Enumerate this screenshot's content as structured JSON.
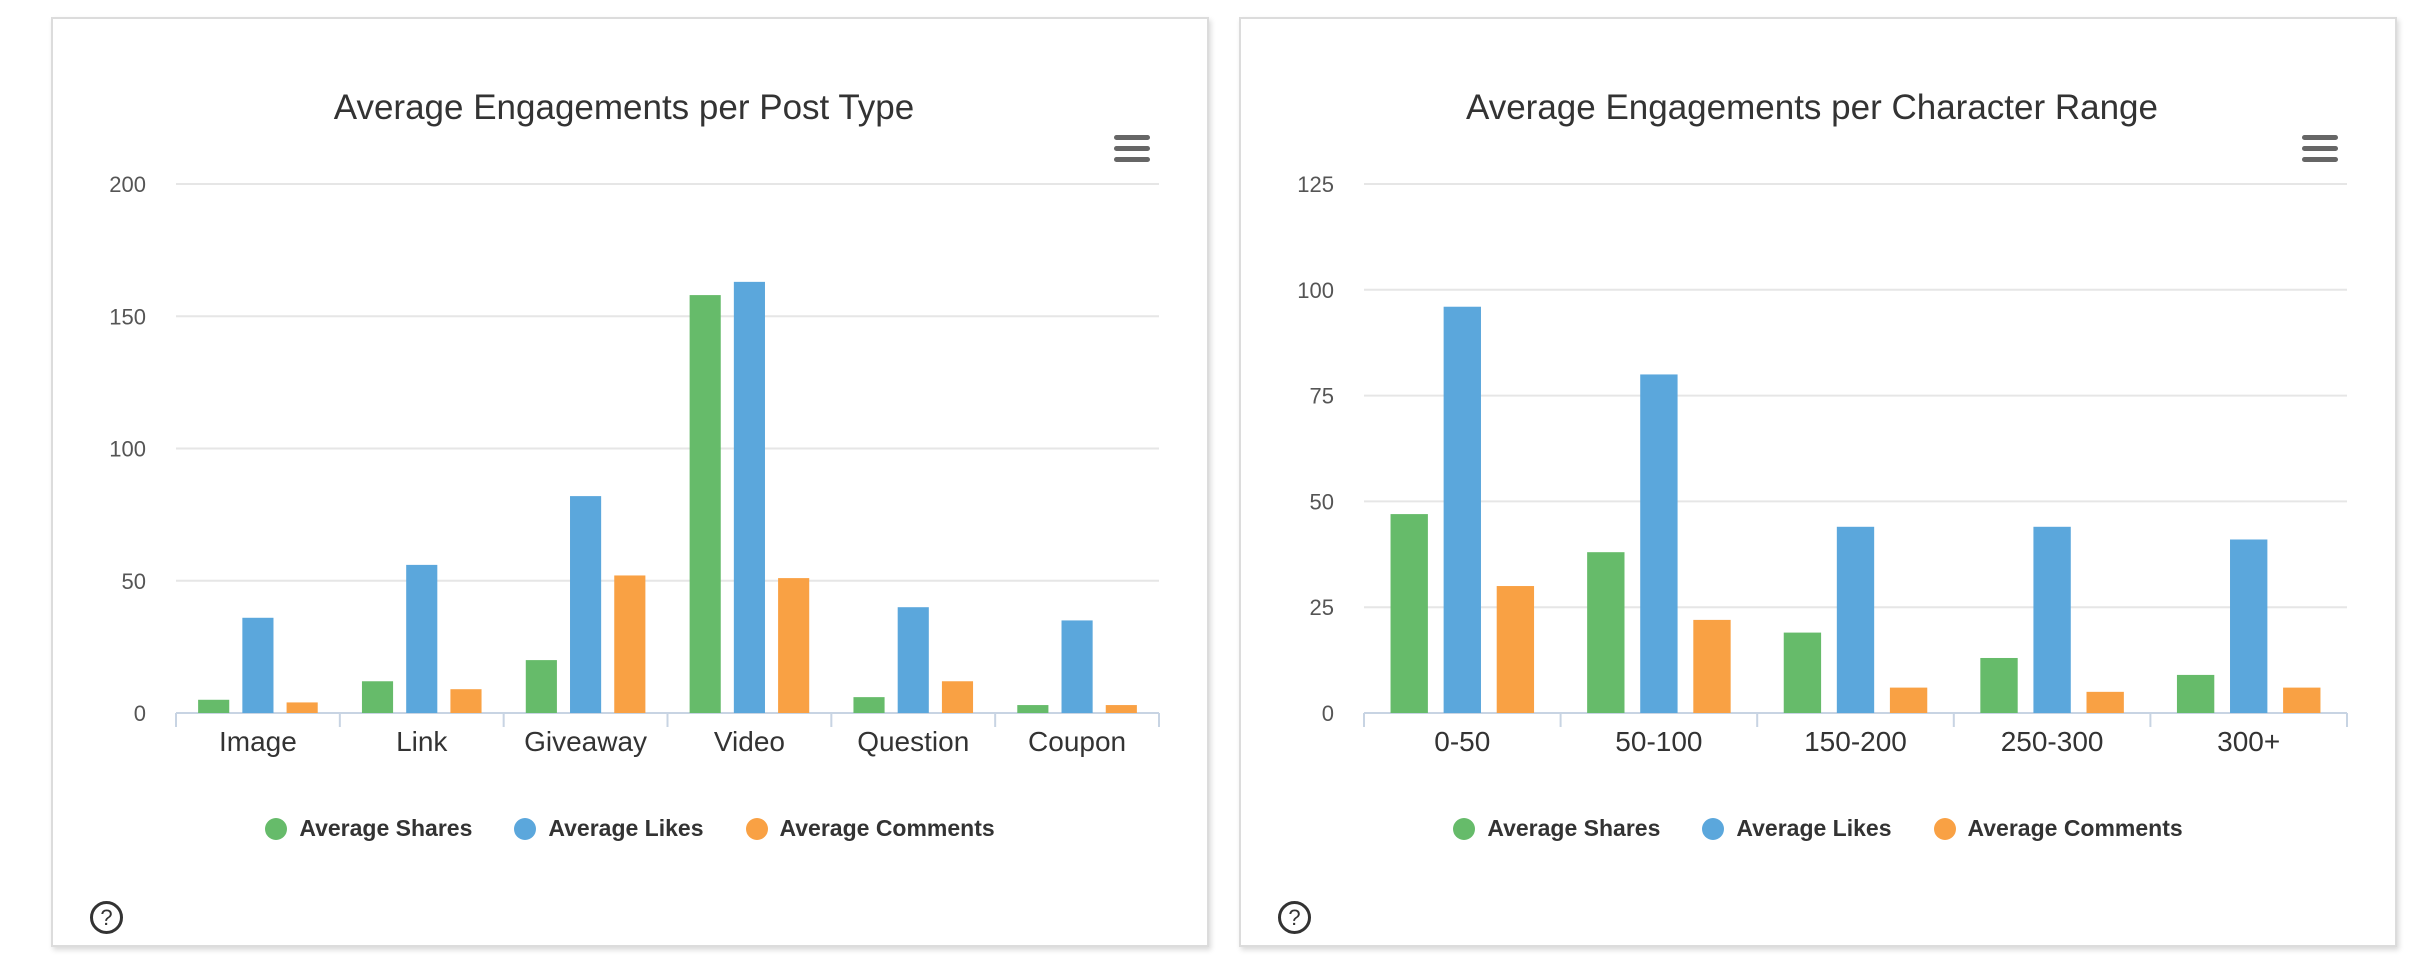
{
  "colors": {
    "shares": "#66bb6a",
    "likes": "#5ba7dc",
    "comments": "#f9a144"
  },
  "chart_data": [
    {
      "type": "bar",
      "title": "Average Engagements per Post Type",
      "categories": [
        "Image",
        "Link",
        "Giveaway",
        "Video",
        "Question",
        "Coupon"
      ],
      "series": [
        {
          "name": "Average Shares",
          "values": [
            5,
            12,
            20,
            158,
            6,
            3
          ]
        },
        {
          "name": "Average Likes",
          "values": [
            36,
            56,
            82,
            163,
            40,
            35
          ]
        },
        {
          "name": "Average Comments",
          "values": [
            4,
            9,
            52,
            51,
            12,
            3
          ]
        }
      ],
      "ylim": [
        0,
        200
      ],
      "yticks": [
        0,
        50,
        100,
        150,
        200
      ],
      "grid": true,
      "legend": "bottom"
    },
    {
      "type": "bar",
      "title": "Average Engagements per Character Range",
      "categories": [
        "0-50",
        "50-100",
        "150-200",
        "250-300",
        "300+"
      ],
      "series": [
        {
          "name": "Average Shares",
          "values": [
            47,
            38,
            19,
            13,
            9
          ]
        },
        {
          "name": "Average Likes",
          "values": [
            96,
            80,
            44,
            44,
            41
          ]
        },
        {
          "name": "Average Comments",
          "values": [
            30,
            22,
            6,
            5,
            6
          ]
        }
      ],
      "ylim": [
        0,
        125
      ],
      "yticks": [
        0,
        25,
        50,
        75,
        100,
        125
      ],
      "grid": true,
      "legend": "bottom"
    }
  ],
  "help_label": "?"
}
